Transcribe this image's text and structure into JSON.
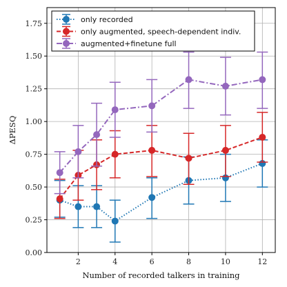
{
  "chart_data": {
    "type": "line",
    "xlabel": "Number of recorded talkers in training",
    "ylabel": "ΔPESQ",
    "xlim": [
      0.3,
      12.7
    ],
    "ylim": [
      0.0,
      1.87
    ],
    "x_ticks": [
      2,
      4,
      6,
      8,
      10,
      12
    ],
    "y_ticks": [
      0.0,
      0.25,
      0.5,
      0.75,
      1.0,
      1.25,
      1.5,
      1.75
    ],
    "y_tick_labels": [
      "0.00",
      "0.25",
      "0.50",
      "0.75",
      "1.00",
      "1.25",
      "1.50",
      "1.75"
    ],
    "grid": true,
    "legend_position": "top-left",
    "series": [
      {
        "name": "only recorded",
        "color": "#1f77b4",
        "line_style": "dotted",
        "x": [
          1,
          2,
          3,
          4,
          6,
          8,
          10,
          12
        ],
        "y": [
          0.4,
          0.35,
          0.35,
          0.24,
          0.42,
          0.55,
          0.57,
          0.68
        ],
        "err_low": [
          0.27,
          0.19,
          0.19,
          0.08,
          0.26,
          0.37,
          0.39,
          0.5
        ],
        "err_high": [
          0.55,
          0.51,
          0.51,
          0.4,
          0.57,
          0.73,
          0.75,
          0.86
        ]
      },
      {
        "name": "only augmented, speech-dependent indiv.",
        "color": "#d62728",
        "line_style": "dashed",
        "x": [
          1,
          2,
          3,
          4,
          6,
          8,
          10,
          12
        ],
        "y": [
          0.41,
          0.59,
          0.67,
          0.75,
          0.78,
          0.72,
          0.78,
          0.88
        ],
        "err_low": [
          0.26,
          0.4,
          0.48,
          0.57,
          0.58,
          0.52,
          0.58,
          0.69
        ],
        "err_high": [
          0.56,
          0.78,
          0.86,
          0.93,
          0.97,
          0.91,
          0.97,
          1.07
        ]
      },
      {
        "name": "augmented+finetune full",
        "color": "#9467bd",
        "line_style": "dashdot",
        "x": [
          1,
          2,
          3,
          4,
          6,
          8,
          10,
          12
        ],
        "y": [
          0.61,
          0.77,
          0.9,
          1.09,
          1.12,
          1.32,
          1.27,
          1.32
        ],
        "err_low": [
          0.45,
          0.57,
          0.66,
          0.88,
          0.92,
          1.1,
          1.05,
          1.1
        ],
        "err_high": [
          0.77,
          0.97,
          1.14,
          1.3,
          1.32,
          1.53,
          1.49,
          1.53
        ]
      }
    ]
  }
}
